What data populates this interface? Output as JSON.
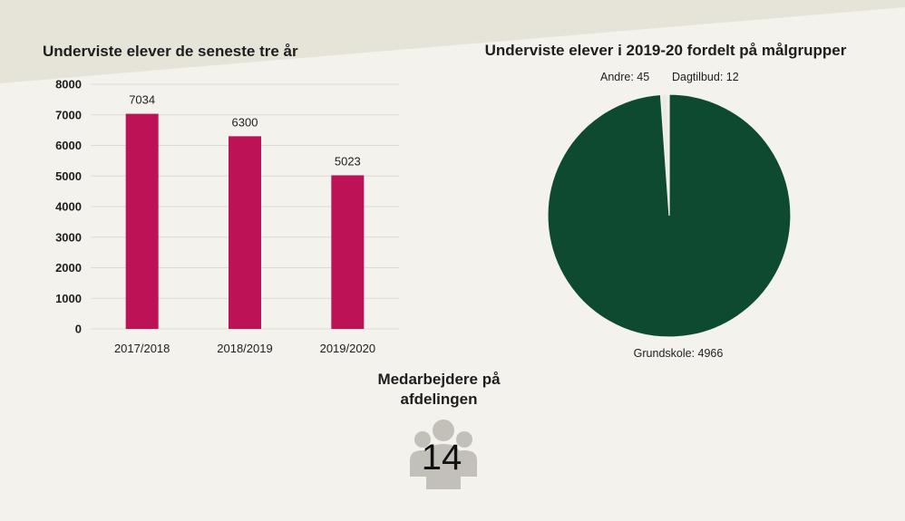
{
  "colors": {
    "background": "#f3f2ec",
    "banner": "#e6e4d9",
    "bar": "#bd1356",
    "pie_main": "#0d4a30",
    "pie_small": "#ecebe3",
    "people_icon": "#c2c0b8"
  },
  "chart_data": [
    {
      "type": "bar",
      "title": "Underviste elever de seneste tre år",
      "categories": [
        "2017/2018",
        "2018/2019",
        "2019/2020"
      ],
      "values": [
        7034,
        6300,
        5023
      ],
      "data_labels": [
        "7034",
        "6300",
        "5023"
      ],
      "ylim": [
        0,
        8000
      ],
      "yticks": [
        0,
        1000,
        2000,
        3000,
        4000,
        5000,
        6000,
        7000,
        8000
      ],
      "grid": true,
      "xlabel": "",
      "ylabel": ""
    },
    {
      "type": "pie",
      "title": "Underviste elever i 2019-20 fordelt på målgrupper",
      "slices": [
        {
          "label": "Grundskole",
          "value": 4966,
          "text": "Grundskole: 4966"
        },
        {
          "label": "Andre",
          "value": 45,
          "text": "Andre: 45"
        },
        {
          "label": "Dagtilbud",
          "value": 12,
          "text": "Dagtilbud: 12"
        }
      ]
    }
  ],
  "staff": {
    "title_line1": "Medarbejdere på",
    "title_line2": "afdelingen",
    "count": "14",
    "icon": "people-group-icon"
  }
}
